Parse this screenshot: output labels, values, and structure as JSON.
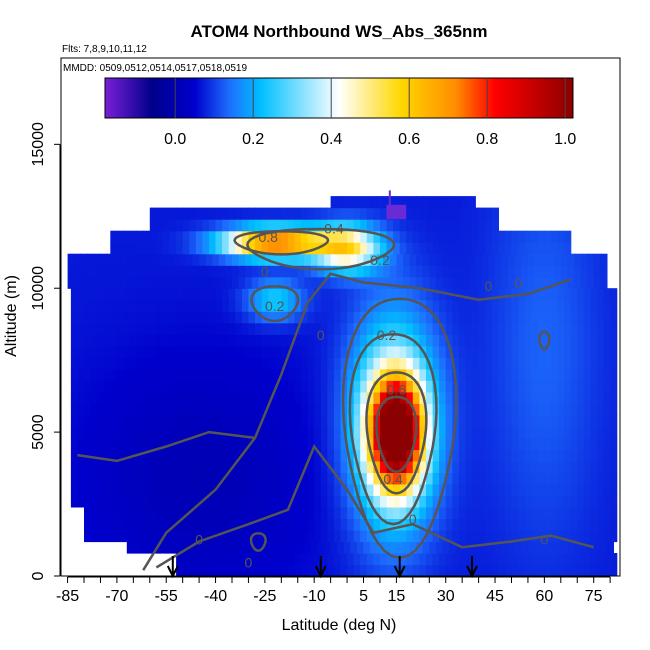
{
  "chart_data": {
    "type": "heatmap",
    "title": "ATOM4 Northbound WS_Abs_365nm",
    "flights_label": "Flts: 7,8,9,10,11,12",
    "dates_label": "MMDD: 0509,0512,0514,0517,0518,0519",
    "xlabel": "Latitude (deg N)",
    "ylabel": "Altitude (m)",
    "xlim": [
      -87,
      83
    ],
    "ylim": [
      0,
      18000
    ],
    "x_ticks": [
      -85,
      -70,
      -55,
      -40,
      -25,
      -10,
      5,
      15,
      30,
      45,
      60,
      75
    ],
    "y_ticks": [
      0,
      5000,
      10000,
      15000
    ],
    "colorbar": {
      "range": [
        -0.18,
        1.02
      ],
      "ticks": [
        0.0,
        0.2,
        0.4,
        0.6,
        0.8,
        1.0
      ],
      "tick_labels": [
        "0.0",
        "0.2",
        "0.4",
        "0.6",
        "0.8",
        "1.0"
      ],
      "colors": [
        "#7a1fd6",
        "#00008b",
        "#0000cd",
        "#1e6fff",
        "#00bfff",
        "#ffffff",
        "#ffd700",
        "#ff8c00",
        "#ff0000",
        "#8b0000"
      ]
    },
    "contour_labels": [
      {
        "text": "0",
        "lat": -25,
        "alt": 10400
      },
      {
        "text": "0",
        "lat": 52,
        "alt": 10000
      },
      {
        "text": "0",
        "lat": -8,
        "alt": 8200
      },
      {
        "text": "0",
        "lat": -45,
        "alt": 1100
      },
      {
        "text": "0",
        "lat": -30,
        "alt": 300
      },
      {
        "text": "0",
        "lat": 20,
        "alt": 1800
      },
      {
        "text": "0",
        "lat": 60,
        "alt": 1100
      },
      {
        "text": "0",
        "lat": 43,
        "alt": 9900
      },
      {
        "text": "0.2",
        "lat": 12,
        "alt": 8200
      },
      {
        "text": "0.2",
        "lat": -22,
        "alt": 9200
      },
      {
        "text": "0.2",
        "lat": 10,
        "alt": 10800
      },
      {
        "text": "0.4",
        "lat": -4,
        "alt": 11900
      },
      {
        "text": "0.4",
        "lat": 14,
        "alt": 3200
      },
      {
        "text": "0.6",
        "lat": 15,
        "alt": 6300
      },
      {
        "text": "0.8",
        "lat": -24,
        "alt": 11600
      }
    ],
    "dive_markers_lat": [
      -53,
      -8,
      16,
      38
    ],
    "core_max": {
      "lat": 15,
      "alt": 5000,
      "value": 1.0
    },
    "upper_layer": {
      "lat_range": [
        -60,
        5
      ],
      "alt": 11600,
      "max_value": 0.85
    }
  }
}
